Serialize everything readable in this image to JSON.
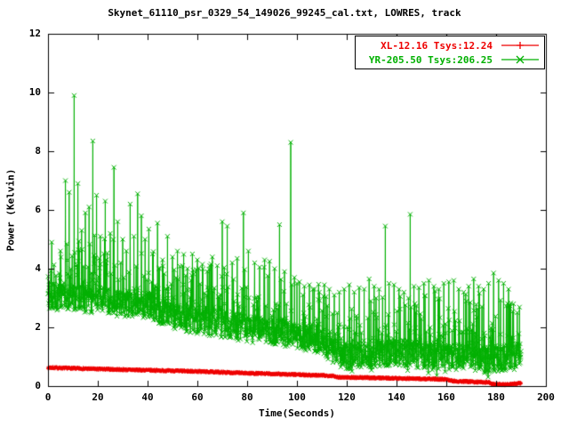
{
  "chart_data": {
    "type": "scatter",
    "title": "Skynet_61110_psr_0329_54_149026_99245_cal.txt, LOWRES, track",
    "xlabel": "Time(Seconds)",
    "ylabel": "Power (Kelvin)",
    "xlim": [
      0,
      200
    ],
    "ylim": [
      0,
      12
    ],
    "xticks": [
      0,
      20,
      40,
      60,
      80,
      100,
      120,
      140,
      160,
      180,
      200
    ],
    "yticks": [
      0,
      2,
      4,
      6,
      8,
      10,
      12
    ],
    "grid": false,
    "legend_position": "top-right",
    "background": "#ffffff",
    "axis_color": "#000000",
    "series": [
      {
        "name": "XL-12.16 Tsys:12.24",
        "color": "#ee0000",
        "marker": "plus",
        "marker_size": 2,
        "style": "linespoints",
        "x_start": 0,
        "x_end": 190,
        "x_step": 0.1,
        "trend": {
          "x": [
            0,
            20,
            40,
            60,
            80,
            100,
            114,
            117,
            132,
            148,
            160,
            163,
            172,
            177,
            179,
            184,
            187,
            190
          ],
          "y": [
            0.63,
            0.58,
            0.54,
            0.5,
            0.44,
            0.39,
            0.35,
            0.3,
            0.28,
            0.25,
            0.23,
            0.17,
            0.14,
            0.13,
            0.06,
            0.05,
            0.08,
            0.1
          ]
        },
        "noise_band": 0.03,
        "tail_prob": 0,
        "tail_max": 0,
        "dip_prob": 0,
        "dip_max": 0,
        "min": 0.02,
        "seed": 7
      },
      {
        "name": "YR-205.50 Tsys:206.25",
        "color": "#00b000",
        "marker": "cross",
        "marker_size": 2.5,
        "style": "linespoints",
        "x_start": 0,
        "x_end": 190,
        "x_step": 0.1,
        "trend": {
          "x": [
            0,
            8,
            16,
            24,
            32,
            40,
            44,
            52,
            60,
            68,
            76,
            84,
            92,
            100,
            106,
            112,
            118,
            124,
            130,
            138,
            146,
            154,
            162,
            170,
            176,
            182,
            187,
            190
          ],
          "y": [
            3.05,
            3.0,
            2.95,
            2.9,
            2.8,
            2.75,
            2.6,
            2.35,
            2.2,
            2.1,
            2.0,
            1.95,
            1.85,
            1.7,
            1.6,
            1.35,
            1.05,
            1.0,
            1.1,
            1.15,
            1.1,
            1.05,
            1.0,
            0.95,
            0.9,
            0.9,
            1.0,
            1.05
          ]
        },
        "noise_band": 0.45,
        "tail_prob": 0.33,
        "tail_max": 1.9,
        "dip_prob": 0.03,
        "dip_max": 0.6,
        "min": 0.05,
        "seed": 42,
        "spikes": [
          [
            1.5,
            4.9
          ],
          [
            5,
            4.6
          ],
          [
            7,
            7.0
          ],
          [
            8.5,
            6.6
          ],
          [
            10.5,
            9.9
          ],
          [
            12,
            6.9
          ],
          [
            13.5,
            5.3
          ],
          [
            15,
            5.9
          ],
          [
            16.5,
            6.1
          ],
          [
            18,
            8.35
          ],
          [
            19.5,
            6.5
          ],
          [
            21,
            5.1
          ],
          [
            23,
            6.3
          ],
          [
            25,
            5.2
          ],
          [
            26.5,
            7.45
          ],
          [
            28,
            5.6
          ],
          [
            30,
            5.0
          ],
          [
            31.5,
            4.6
          ],
          [
            33,
            6.2
          ],
          [
            34.5,
            5.1
          ],
          [
            36,
            6.55
          ],
          [
            37.5,
            5.8
          ],
          [
            39,
            5.0
          ],
          [
            40.5,
            5.35
          ],
          [
            42,
            4.5
          ],
          [
            44,
            5.55
          ],
          [
            46,
            4.3
          ],
          [
            48,
            5.1
          ],
          [
            50,
            4.4
          ],
          [
            52,
            4.6
          ],
          [
            54,
            4.1
          ],
          [
            56,
            4.0
          ],
          [
            58,
            4.5
          ],
          [
            60,
            4.3
          ],
          [
            62,
            4.15
          ],
          [
            64,
            3.9
          ],
          [
            66,
            4.4
          ],
          [
            68,
            4.1
          ],
          [
            70,
            5.6
          ],
          [
            72,
            5.45
          ],
          [
            74,
            4.2
          ],
          [
            76,
            4.35
          ],
          [
            78.5,
            5.9
          ],
          [
            80.5,
            4.6
          ],
          [
            83,
            4.2
          ],
          [
            85,
            4.05
          ],
          [
            87,
            4.3
          ],
          [
            89,
            4.25
          ],
          [
            91,
            4.0
          ],
          [
            93,
            5.5
          ],
          [
            95,
            3.9
          ],
          [
            97.5,
            8.3
          ],
          [
            99,
            3.7
          ],
          [
            101,
            3.55
          ],
          [
            103,
            3.4
          ],
          [
            105,
            3.45
          ],
          [
            107,
            3.3
          ],
          [
            109,
            3.2
          ],
          [
            111,
            3.45
          ],
          [
            113,
            3.3
          ],
          [
            115,
            3.1
          ],
          [
            117,
            3.2
          ],
          [
            119,
            3.3
          ],
          [
            121,
            3.45
          ],
          [
            123,
            3.2
          ],
          [
            125,
            3.35
          ],
          [
            127,
            3.3
          ],
          [
            129,
            3.65
          ],
          [
            131,
            3.4
          ],
          [
            133,
            3.3
          ],
          [
            135.5,
            5.45
          ],
          [
            137,
            3.5
          ],
          [
            139,
            3.45
          ],
          [
            141,
            3.3
          ],
          [
            143,
            3.2
          ],
          [
            145.5,
            5.85
          ],
          [
            147,
            3.4
          ],
          [
            149,
            3.35
          ],
          [
            151,
            3.5
          ],
          [
            153,
            3.6
          ],
          [
            155,
            3.4
          ],
          [
            157,
            3.3
          ],
          [
            159,
            3.5
          ],
          [
            161,
            3.55
          ],
          [
            163,
            3.6
          ],
          [
            165,
            3.3
          ],
          [
            167,
            3.2
          ],
          [
            169,
            3.4
          ],
          [
            171,
            3.65
          ],
          [
            173,
            3.4
          ],
          [
            175,
            3.3
          ],
          [
            177,
            3.5
          ],
          [
            179,
            3.85
          ],
          [
            181,
            3.6
          ],
          [
            183,
            3.5
          ],
          [
            185,
            3.3
          ],
          [
            187,
            2.8
          ],
          [
            188.5,
            2.5
          ]
        ]
      }
    ]
  }
}
